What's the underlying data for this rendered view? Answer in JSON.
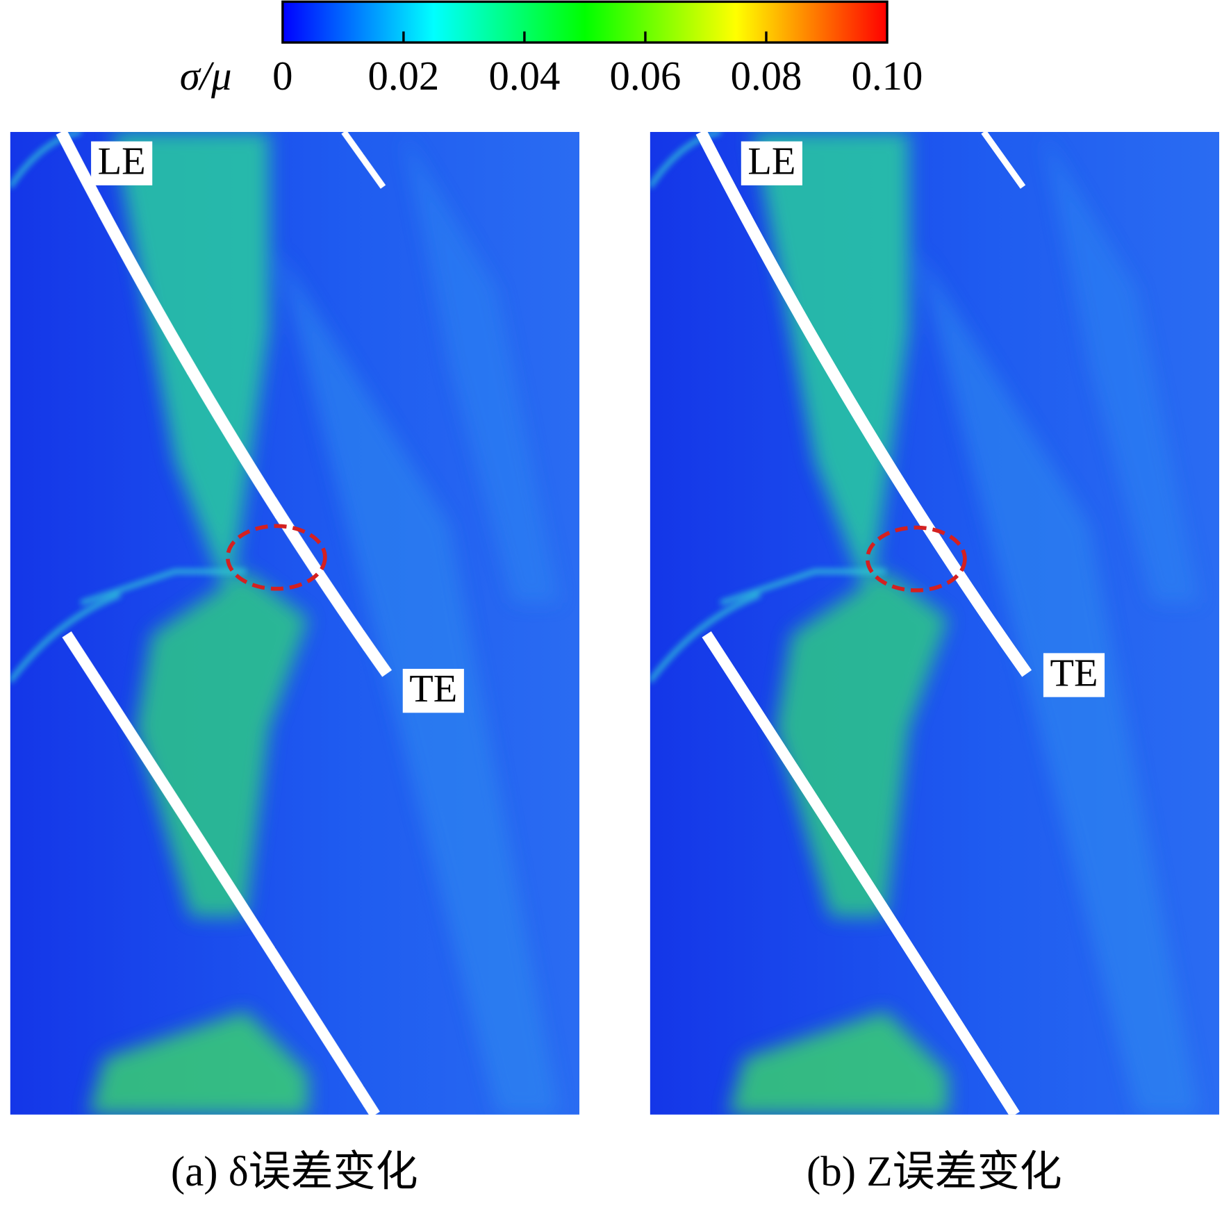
{
  "chart_data": {
    "type": "contour",
    "colorbar": {
      "label": "σ/μ",
      "lim": [
        0,
        0.1
      ],
      "ticks": [
        0,
        0.02,
        0.04,
        0.06,
        0.08,
        {
          "value": 0.1,
          "label": "0.10"
        }
      ],
      "colormap": [
        "#0000ff",
        "#00ffff",
        "#00ff00",
        "#ffff00",
        "#ff0000"
      ]
    },
    "panels": [
      {
        "caption": "(a) δ误差变化",
        "labels": [
          "LE",
          "TE"
        ]
      },
      {
        "caption": "(b) Z误差变化",
        "labels": [
          "LE",
          "TE"
        ]
      }
    ]
  }
}
